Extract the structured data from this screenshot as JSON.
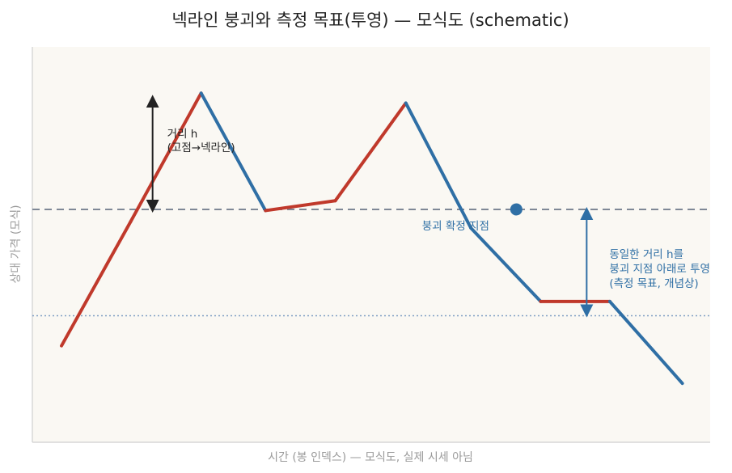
{
  "chart_data": {
    "type": "line",
    "title": "넥라인 붕괴와 측정 목표(투영) — 모식도 (schematic)",
    "xlabel": "시간 (봉 인덱스) — 모식도, 실제 시세 아님",
    "ylabel": "상대 가격 (모식)",
    "xlim": [
      0,
      100
    ],
    "ylim": [
      0,
      100
    ],
    "grid": false,
    "colors": {
      "up": "#c0392b",
      "down": "#2f6fa5",
      "neckline": "#7f8896",
      "target": "#7f9ec4",
      "background": "#faf8f3"
    },
    "series": [
      {
        "x": [
          4.3,
          14.5,
          24.9,
          34.4,
          44.7,
          55.1,
          64.7,
          75.0,
          85.2,
          95.9
        ],
        "y": [
          24.4,
          55.8,
          88.3,
          58.6,
          61.1,
          85.8,
          54.2,
          35.6,
          35.6,
          14.9
        ]
      }
    ],
    "neckline": {
      "y": 58.9
    },
    "target": {
      "y": 32.0
    },
    "break_point": {
      "x": 71.4,
      "y": 58.9,
      "label": "붕괴 확정 지점"
    },
    "annotations": {
      "height": {
        "line1": "거리 h",
        "line2": "(고점→넥라인)"
      },
      "projection": {
        "line1": "동일한 거리 h를",
        "line2": "붕괴 지점 아래로 투영",
        "line3": "(측정 목표, 개념상)"
      }
    }
  }
}
